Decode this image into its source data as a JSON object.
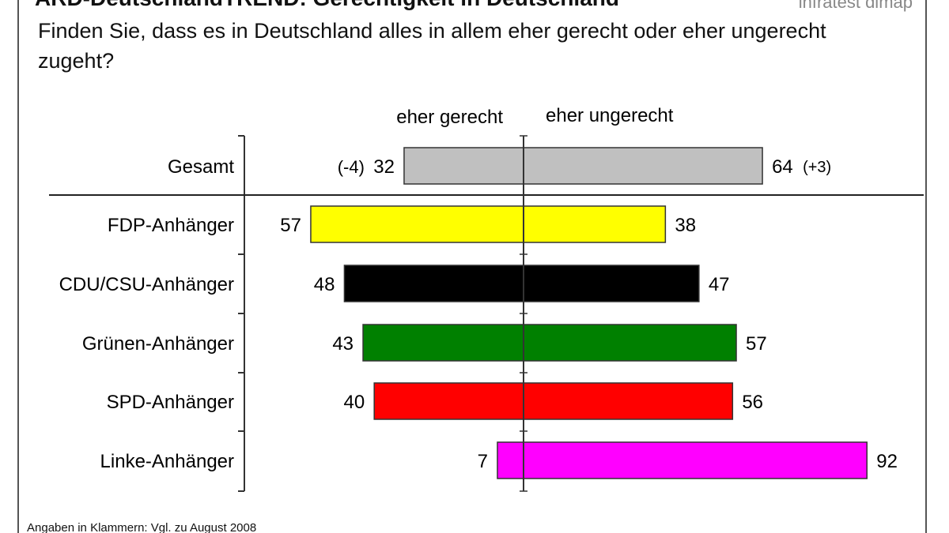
{
  "header": {
    "title": "ARD-DeutschlandTREND: Gerechtigkeit in Deutschland",
    "source": "infratest dimap"
  },
  "question": "Finden Sie, dass es in Deutschland alles in allem eher gerecht oder eher ungerecht zugeht?",
  "footnote": "Angaben in Klammern: Vgl. zu August 2008",
  "chart_data": {
    "type": "bar",
    "orientation": "horizontal-diverging",
    "legend_left": "eher gerecht",
    "legend_right": "eher ungerecht",
    "categories": [
      "Gesamt",
      "FDP-Anhänger",
      "CDU/CSU-Anhänger",
      "Grünen-Anhänger",
      "SPD-Anhänger",
      "Linke-Anhänger"
    ],
    "series": [
      {
        "name": "eher gerecht",
        "values": [
          32,
          57,
          48,
          43,
          40,
          7
        ]
      },
      {
        "name": "eher ungerecht",
        "values": [
          64,
          38,
          47,
          57,
          56,
          92
        ]
      }
    ],
    "changes": {
      "eher gerecht": [
        "(-4)",
        null,
        null,
        null,
        null,
        null
      ],
      "eher ungerecht": [
        "(+3)",
        null,
        null,
        null,
        null,
        null
      ]
    },
    "colors": [
      "#c0c0c0",
      "#ffff00",
      "#000000",
      "#008000",
      "#ff0000",
      "#ff00ff"
    ],
    "unit": "%"
  }
}
